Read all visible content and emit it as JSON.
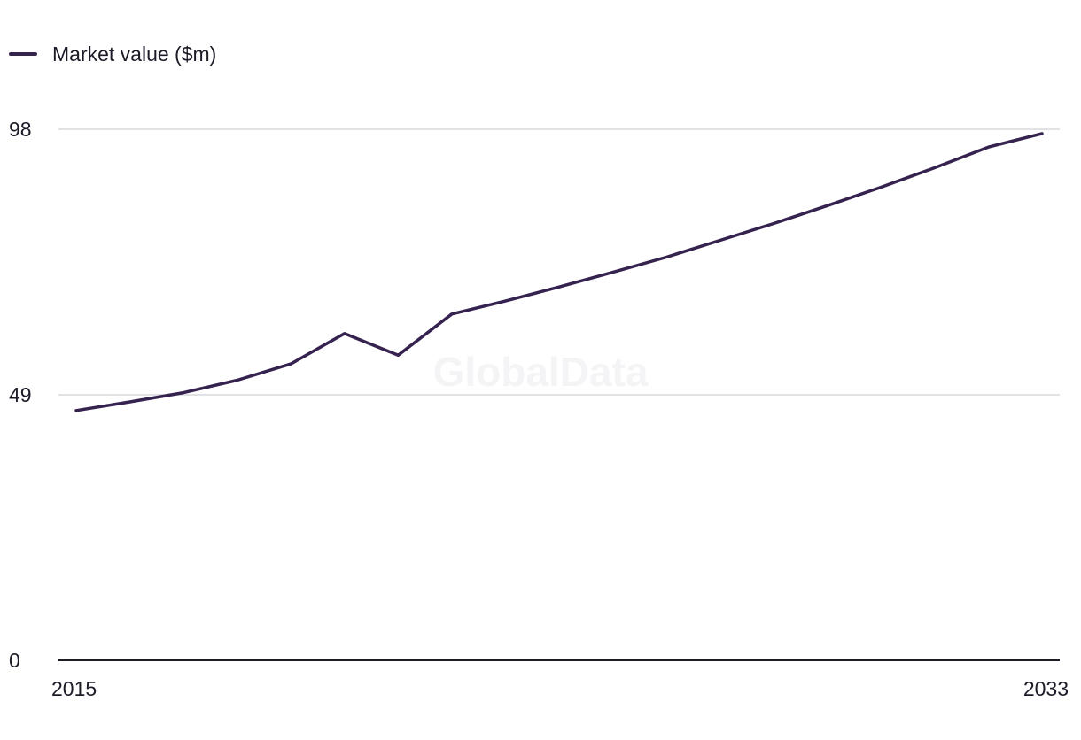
{
  "legend": {
    "label": "Market value ($m)"
  },
  "watermark": "GlobalData",
  "colors": {
    "series": "#35224f",
    "gridline": "#d9d9dd",
    "axis": "#1c1c28",
    "text": "#1c1c28"
  },
  "chart_data": {
    "type": "line",
    "title": "",
    "xlabel": "",
    "ylabel": "",
    "x": [
      2015,
      2016,
      2017,
      2018,
      2019,
      2020,
      2021,
      2022,
      2023,
      2024,
      2025,
      2026,
      2027,
      2028,
      2029,
      2030,
      2031,
      2032,
      2033
    ],
    "series": [
      {
        "name": "Market value ($m)",
        "values": [
          46.1,
          47.7,
          49.4,
          51.7,
          54.7,
          60.3,
          56.3,
          63.9,
          66.3,
          68.9,
          71.6,
          74.4,
          77.5,
          80.6,
          83.9,
          87.3,
          90.9,
          94.7,
          97.2
        ]
      }
    ],
    "ylim": [
      0,
      98
    ],
    "yticks": [
      "0",
      "49",
      "98"
    ],
    "xticks": [
      "2015",
      "2033"
    ],
    "grid": true,
    "legend_position": "top-left"
  }
}
